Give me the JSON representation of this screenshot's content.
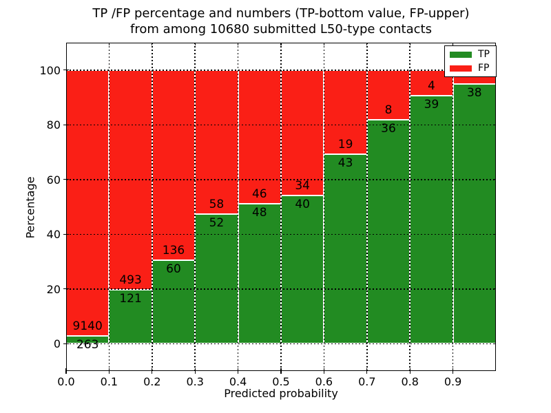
{
  "chart_data": {
    "type": "bar",
    "stacked": true,
    "title_line1": "TP /FP percentage and numbers (TP-bottom value, FP-upper)",
    "title_line2": "from among 10680 submitted L50-type contacts",
    "xlabel": "Predicted probability",
    "ylabel": "Percentage",
    "xlim": [
      0.0,
      1.0
    ],
    "ylim": [
      -10,
      110
    ],
    "grid": "dotted",
    "legend_position": "upper right",
    "x_ticks": [
      {
        "value": 0.0,
        "label": "0.0"
      },
      {
        "value": 0.1,
        "label": "0.1"
      },
      {
        "value": 0.2,
        "label": "0.2"
      },
      {
        "value": 0.3,
        "label": "0.3"
      },
      {
        "value": 0.4,
        "label": "0.4"
      },
      {
        "value": 0.5,
        "label": "0.5"
      },
      {
        "value": 0.6,
        "label": "0.6"
      },
      {
        "value": 0.7,
        "label": "0.7"
      },
      {
        "value": 0.8,
        "label": "0.8"
      },
      {
        "value": 0.9,
        "label": "0.9"
      }
    ],
    "y_ticks": [
      {
        "value": 0,
        "label": "0"
      },
      {
        "value": 20,
        "label": "20"
      },
      {
        "value": 40,
        "label": "40"
      },
      {
        "value": 60,
        "label": "60"
      },
      {
        "value": 80,
        "label": "80"
      },
      {
        "value": 100,
        "label": "100"
      }
    ],
    "colors": {
      "tp": "#228b22",
      "fp": "#fa1f16"
    },
    "legend": [
      {
        "label": "TP",
        "color": "#228b22"
      },
      {
        "label": "FP",
        "color": "#fa1f16"
      }
    ],
    "bars": [
      {
        "x0": 0.0,
        "x1": 0.1,
        "tp": 263,
        "fp": 9140,
        "tp_label": "263",
        "fp_label": "9140"
      },
      {
        "x0": 0.1,
        "x1": 0.2,
        "tp": 121,
        "fp": 493,
        "tp_label": "121",
        "fp_label": "493"
      },
      {
        "x0": 0.2,
        "x1": 0.3,
        "tp": 60,
        "fp": 136,
        "tp_label": "60",
        "fp_label": "136"
      },
      {
        "x0": 0.3,
        "x1": 0.4,
        "tp": 52,
        "fp": 58,
        "tp_label": "52",
        "fp_label": "58"
      },
      {
        "x0": 0.4,
        "x1": 0.5,
        "tp": 48,
        "fp": 46,
        "tp_label": "48",
        "fp_label": "46"
      },
      {
        "x0": 0.5,
        "x1": 0.6,
        "tp": 40,
        "fp": 34,
        "tp_label": "40",
        "fp_label": "34"
      },
      {
        "x0": 0.6,
        "x1": 0.7,
        "tp": 43,
        "fp": 19,
        "tp_label": "43",
        "fp_label": "19"
      },
      {
        "x0": 0.7,
        "x1": 0.8,
        "tp": 36,
        "fp": 8,
        "tp_label": "36",
        "fp_label": "8"
      },
      {
        "x0": 0.8,
        "x1": 0.9,
        "tp": 39,
        "fp": 4,
        "tp_label": "39",
        "fp_label": "4"
      },
      {
        "x0": 0.9,
        "x1": 1.0,
        "tp": 38,
        "fp": 2,
        "tp_label": "38",
        "fp_label": ""
      }
    ]
  }
}
